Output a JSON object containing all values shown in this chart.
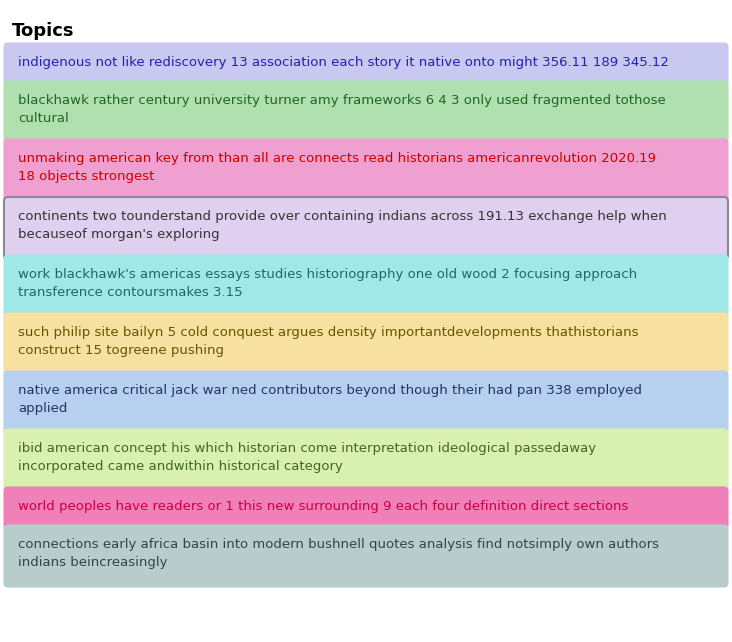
{
  "title": "Topics",
  "background_color": "#ffffff",
  "fig_width": 7.32,
  "fig_height": 6.42,
  "dpi": 100,
  "topics": [
    {
      "text": "indigenous not like rediscovery 13 association each story it native onto might 356.11 189 345.12",
      "bg_color": "#c8c8f0",
      "text_color": "#2222aa",
      "border_color": null,
      "lines": 1
    },
    {
      "text": "blackhawk rather century university turner amy frameworks 6 4 3 only used fragmented tothose\ncultural",
      "bg_color": "#b0e0b0",
      "text_color": "#226622",
      "border_color": null,
      "lines": 2
    },
    {
      "text": "unmaking american key from than all are connects read historians americanrevolution 2020.19\n18 objects strongest",
      "bg_color": "#f0a0d0",
      "text_color": "#cc0000",
      "border_color": null,
      "lines": 2
    },
    {
      "text": "continents two tounderstand provide over containing indians across 191.13 exchange help when\nbecauseof morgan's exploring",
      "bg_color": "#e0d0f0",
      "text_color": "#333333",
      "border_color": "#888899",
      "lines": 2
    },
    {
      "text": "work blackhawk's americas essays studies historiography one old wood 2 focusing approach\ntransference contoursmakes 3.15",
      "bg_color": "#a0e8e8",
      "text_color": "#226666",
      "border_color": null,
      "lines": 2
    },
    {
      "text": "such philip site bailyn 5 cold conquest argues density importantdevelopments thathistorians\nconstruct 15 togreene pushing",
      "bg_color": "#f8e0a0",
      "text_color": "#665500",
      "border_color": null,
      "lines": 2
    },
    {
      "text": "native america critical jack war ned contributors beyond though their had pan 338 employed\napplied",
      "bg_color": "#b8d0f0",
      "text_color": "#223366",
      "border_color": null,
      "lines": 2
    },
    {
      "text": "ibid american concept his which historian come interpretation ideological passedaway\nincorporated came andwithin historical category",
      "bg_color": "#d8f0b0",
      "text_color": "#446622",
      "border_color": null,
      "lines": 2
    },
    {
      "text": "world peoples have readers or 1 this new surrounding 9 each four definition direct sections",
      "bg_color": "#f080b8",
      "text_color": "#cc0044",
      "border_color": null,
      "lines": 1
    },
    {
      "text": "connections early africa basin into modern bushnell quotes analysis find notsimply own authors\nindians beincreasingly",
      "bg_color": "#b8cccc",
      "text_color": "#334444",
      "border_color": null,
      "lines": 2
    }
  ]
}
